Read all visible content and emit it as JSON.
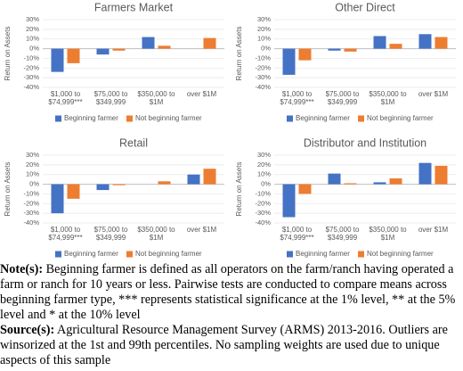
{
  "chart_data": [
    {
      "type": "bar",
      "title": "Farmers Market",
      "y_label": "Return on Assets",
      "categories": [
        "$1,000 to $74,999***",
        "$75,000 to $349,999",
        "$350,000 to $1M",
        "over $1M"
      ],
      "series": [
        {
          "name": "Beginning farmer",
          "color": "#4472c4",
          "values": [
            -24,
            -6,
            12,
            null
          ]
        },
        {
          "name": "Not beginning farmer",
          "color": "#ed7d31",
          "values": [
            -15,
            -2,
            3,
            11
          ]
        }
      ],
      "ylim": [
        -40,
        30
      ],
      "yticks": [
        {
          "value": -40,
          "label": "-40%"
        },
        {
          "value": -30,
          "label": "-30%"
        },
        {
          "value": -20,
          "label": "-20%"
        },
        {
          "value": -10,
          "label": "-10%"
        },
        {
          "value": 0,
          "label": "0%"
        },
        {
          "value": 10,
          "label": "10%"
        },
        {
          "value": 20,
          "label": "20%"
        },
        {
          "value": 30,
          "label": "30%"
        }
      ],
      "grid": true,
      "legend": "bottom"
    },
    {
      "type": "bar",
      "title": "Other Direct",
      "y_label": "Return on Assets",
      "categories": [
        "$1,000 to $74,999***",
        "$75,000 to $349,999",
        "$350,000 to $1M",
        "over $1M"
      ],
      "series": [
        {
          "name": "Beginning farmer",
          "color": "#4472c4",
          "values": [
            -27,
            -2,
            13,
            15
          ]
        },
        {
          "name": "Not beginning farmer",
          "color": "#ed7d31",
          "values": [
            -12,
            -3,
            5,
            12
          ]
        }
      ],
      "ylim": [
        -40,
        30
      ],
      "yticks": [
        {
          "value": -40,
          "label": "-40%"
        },
        {
          "value": -30,
          "label": "-30%"
        },
        {
          "value": -20,
          "label": "-20%"
        },
        {
          "value": -10,
          "label": "-10%"
        },
        {
          "value": 0,
          "label": "0%"
        },
        {
          "value": 10,
          "label": "10%"
        },
        {
          "value": 20,
          "label": "20%"
        },
        {
          "value": 30,
          "label": "30%"
        }
      ],
      "grid": true,
      "legend": "bottom"
    },
    {
      "type": "bar",
      "title": "Retail",
      "y_label": "Return on Assets",
      "categories": [
        "$1,000 to $74,999***",
        "$75,000 to $349,999",
        "$350,000 to $1M",
        "over $1M"
      ],
      "series": [
        {
          "name": "Beginning farmer",
          "color": "#4472c4",
          "values": [
            -30,
            -6,
            0,
            10
          ]
        },
        {
          "name": "Not beginning farmer",
          "color": "#ed7d31",
          "values": [
            -15,
            -1,
            3,
            16
          ]
        }
      ],
      "ylim": [
        -40,
        30
      ],
      "yticks": [
        {
          "value": -40,
          "label": "-40%"
        },
        {
          "value": -30,
          "label": "-30%"
        },
        {
          "value": -20,
          "label": "-20%"
        },
        {
          "value": -10,
          "label": "-10%"
        },
        {
          "value": 0,
          "label": "0%"
        },
        {
          "value": 10,
          "label": "10%"
        },
        {
          "value": 20,
          "label": "20%"
        },
        {
          "value": 30,
          "label": "30%"
        }
      ],
      "grid": true,
      "legend": "bottom"
    },
    {
      "type": "bar",
      "title": "Distributor and Institution",
      "y_label": "Return on Assets",
      "categories": [
        "$1,000 to $74,999***",
        "$75,000 to $349,999",
        "$350,000 to $1M",
        "over $1M"
      ],
      "series": [
        {
          "name": "Beginning farmer",
          "color": "#4472c4",
          "values": [
            -34,
            11,
            2,
            22
          ]
        },
        {
          "name": "Not beginning farmer",
          "color": "#ed7d31",
          "values": [
            -10,
            1,
            6,
            19
          ]
        }
      ],
      "ylim": [
        -40,
        30
      ],
      "yticks": [
        {
          "value": -40,
          "label": "-40%"
        },
        {
          "value": -30,
          "label": "-30%"
        },
        {
          "value": -20,
          "label": "-20%"
        },
        {
          "value": -10,
          "label": "-10%"
        },
        {
          "value": 0,
          "label": "0%"
        },
        {
          "value": 10,
          "label": "10%"
        },
        {
          "value": 20,
          "label": "20%"
        },
        {
          "value": 30,
          "label": "30%"
        }
      ],
      "grid": true,
      "legend": "bottom"
    }
  ],
  "notes": [
    {
      "label": "Note(s):",
      "text": "Beginning farmer is defined as all operators on the farm/ranch having operated a farm or ranch for 10 years or less. Pairwise tests are conducted to compare means across beginning farmer type, *** represents statistical significance at the 1% level, ** at the 5% level and * at the 10% level"
    },
    {
      "label": "Source(s):",
      "text": "Agricultural Resource Management Survey (ARMS) 2013-2016. Outliers are winsorized at the 1st and 99th percentiles. No sampling weights are used due to unique aspects of this sample"
    }
  ]
}
